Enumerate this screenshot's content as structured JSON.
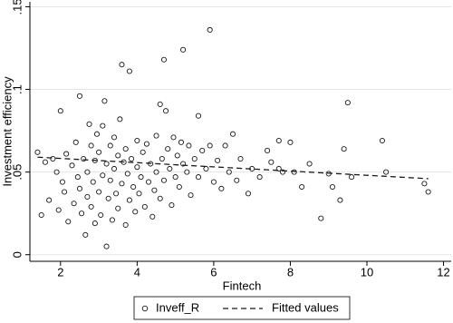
{
  "chart_data": {
    "type": "scatter",
    "xlabel": "Fintech",
    "ylabel": "Investment efficiency",
    "xlim": [
      1.2,
      12.2
    ],
    "ylim": [
      -0.004,
      0.153
    ],
    "xticks": [
      2,
      4,
      6,
      8,
      10,
      12
    ],
    "yticks": [
      0,
      {
        "value": 0.05,
        "label": ".05"
      },
      {
        "value": 0.1,
        "label": ".1"
      },
      {
        "value": 0.15,
        "label": ".15"
      }
    ],
    "grid": true,
    "legend": "bottom",
    "series": [
      {
        "name": "Inveff_R",
        "type": "scatter",
        "color": "#1a1a1a",
        "x": [
          1.4,
          1.5,
          1.6,
          1.7,
          1.8,
          1.9,
          1.95,
          2.0,
          2.05,
          2.1,
          2.15,
          2.2,
          2.3,
          2.35,
          2.4,
          2.45,
          2.5,
          2.5,
          2.55,
          2.6,
          2.65,
          2.7,
          2.7,
          2.75,
          2.8,
          2.8,
          2.85,
          2.9,
          2.9,
          2.95,
          3.0,
          3.0,
          3.05,
          3.1,
          3.1,
          3.15,
          3.2,
          3.2,
          3.25,
          3.3,
          3.3,
          3.35,
          3.4,
          3.4,
          3.45,
          3.5,
          3.5,
          3.55,
          3.6,
          3.6,
          3.65,
          3.7,
          3.7,
          3.75,
          3.8,
          3.8,
          3.85,
          3.9,
          3.95,
          4.0,
          4.0,
          4.05,
          4.1,
          4.15,
          4.2,
          4.25,
          4.3,
          4.35,
          4.4,
          4.45,
          4.5,
          4.5,
          4.6,
          4.6,
          4.65,
          4.7,
          4.7,
          4.75,
          4.8,
          4.85,
          4.9,
          4.95,
          5.0,
          5.05,
          5.1,
          5.15,
          5.2,
          5.2,
          5.3,
          5.35,
          5.4,
          5.5,
          5.6,
          5.6,
          5.7,
          5.8,
          5.9,
          5.9,
          6.0,
          6.1,
          6.2,
          6.3,
          6.4,
          6.5,
          6.6,
          6.7,
          6.9,
          7.0,
          7.2,
          7.4,
          7.5,
          7.7,
          7.7,
          7.8,
          8.0,
          8.1,
          8.3,
          8.5,
          8.8,
          9.0,
          9.1,
          9.3,
          9.4,
          9.5,
          9.6,
          10.4,
          10.5,
          11.5,
          11.6
        ],
        "values": [
          0.062,
          0.024,
          0.056,
          0.033,
          0.058,
          0.05,
          0.027,
          0.087,
          0.044,
          0.038,
          0.061,
          0.02,
          0.054,
          0.031,
          0.068,
          0.047,
          0.096,
          0.04,
          0.025,
          0.058,
          0.012,
          0.035,
          0.05,
          0.079,
          0.066,
          0.029,
          0.044,
          0.019,
          0.057,
          0.073,
          0.038,
          0.062,
          0.024,
          0.048,
          0.078,
          0.093,
          0.005,
          0.055,
          0.034,
          0.066,
          0.045,
          0.021,
          0.071,
          0.052,
          0.037,
          0.06,
          0.028,
          0.082,
          0.115,
          0.043,
          0.056,
          0.018,
          0.064,
          0.049,
          0.111,
          0.033,
          0.058,
          0.041,
          0.026,
          0.069,
          0.053,
          0.037,
          0.047,
          0.062,
          0.029,
          0.067,
          0.044,
          0.055,
          0.023,
          0.039,
          0.072,
          0.05,
          0.091,
          0.034,
          0.058,
          0.118,
          0.045,
          0.087,
          0.064,
          0.052,
          0.03,
          0.071,
          0.047,
          0.06,
          0.041,
          0.068,
          0.124,
          0.055,
          0.05,
          0.066,
          0.036,
          0.058,
          0.084,
          0.047,
          0.063,
          0.052,
          0.136,
          0.066,
          0.044,
          0.057,
          0.04,
          0.066,
          0.05,
          0.073,
          0.045,
          0.058,
          0.037,
          0.052,
          0.047,
          0.063,
          0.056,
          0.069,
          0.052,
          0.05,
          0.068,
          0.05,
          0.041,
          0.055,
          0.022,
          0.049,
          0.041,
          0.033,
          0.064,
          0.092,
          0.047,
          0.069,
          0.05,
          0.043,
          0.038
        ]
      },
      {
        "name": "Fitted values",
        "type": "line",
        "color": "#1a1a1a",
        "x": [
          1.4,
          11.6
        ],
        "values": [
          0.059,
          0.046
        ]
      }
    ]
  }
}
